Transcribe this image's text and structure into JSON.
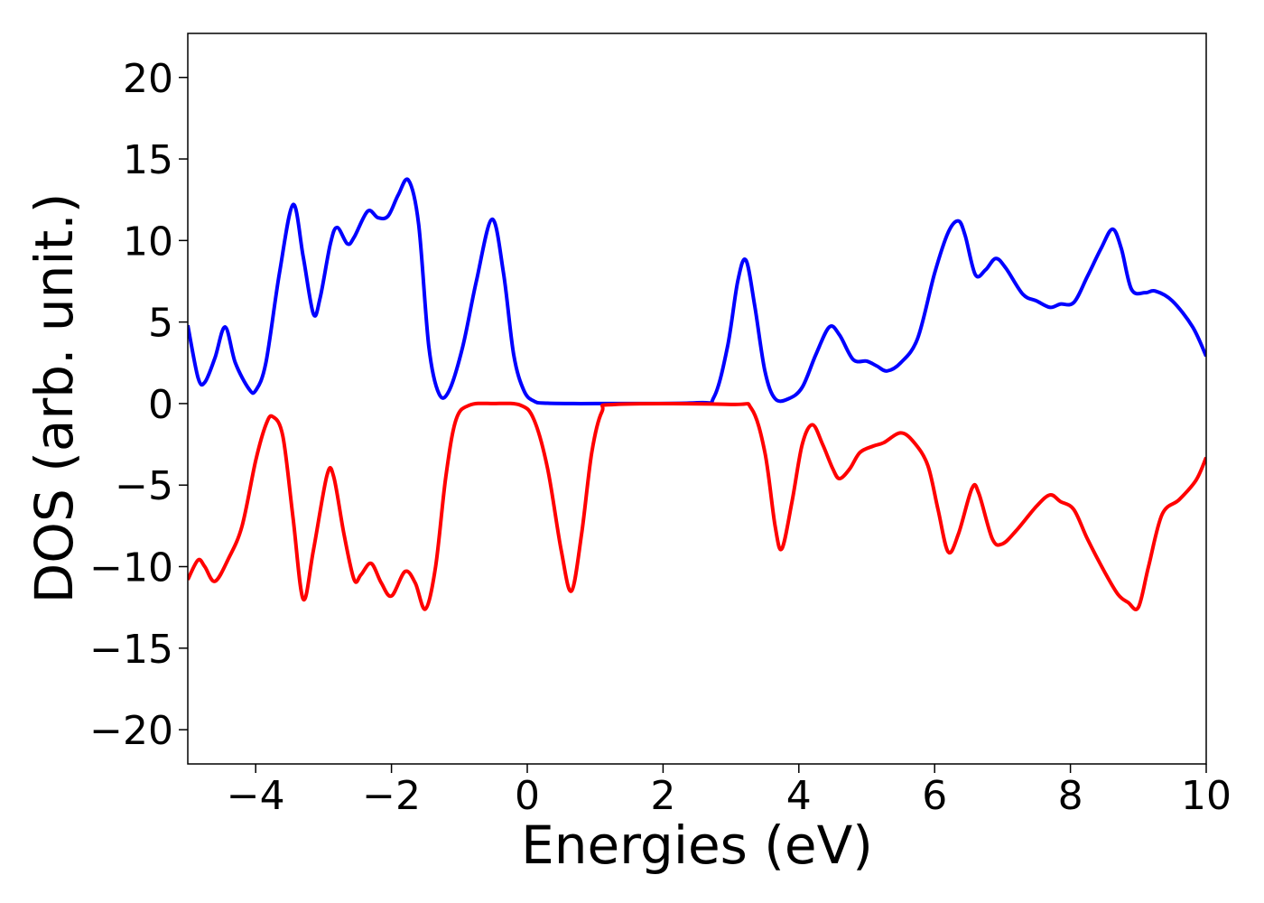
{
  "chart_data": {
    "type": "line",
    "xlabel": "Energies (eV)",
    "ylabel": "DOS (arb. unit.)",
    "xlim": [
      -5,
      10
    ],
    "ylim": [
      -22.1,
      22.7
    ],
    "xticks": [
      {
        "value": -4,
        "label": "−4"
      },
      {
        "value": -2,
        "label": "−2"
      },
      0,
      2,
      4,
      6,
      8,
      10
    ],
    "yticks": [
      {
        "value": -20,
        "label": "−20"
      },
      {
        "value": -15,
        "label": "−15"
      },
      {
        "value": -10,
        "label": "−10"
      },
      {
        "value": -5,
        "label": "−5"
      },
      0,
      5,
      10,
      15,
      20
    ],
    "series": [
      {
        "color": "#0000ff",
        "x": [
          -5,
          -4.85,
          -4.75,
          -4.6,
          -4.45,
          -4.3,
          -4.1,
          -4.0,
          -3.85,
          -3.65,
          -3.45,
          -3.3,
          -3.15,
          -3.05,
          -2.9,
          -2.8,
          -2.65,
          -2.55,
          -2.35,
          -2.2,
          -2.05,
          -1.9,
          -1.75,
          -1.6,
          -1.45,
          -1.3,
          -1.15,
          -0.95,
          -0.75,
          -0.52,
          -0.35,
          -0.2,
          -0.05,
          0.1,
          0.3,
          1,
          2.5,
          2.75,
          2.95,
          3.1,
          3.22,
          3.35,
          3.5,
          3.65,
          3.85,
          4.05,
          4.25,
          4.45,
          4.6,
          4.8,
          5.0,
          5.15,
          5.3,
          5.5,
          5.75,
          6.0,
          6.2,
          6.35,
          6.45,
          6.6,
          6.75,
          6.9,
          7.05,
          7.3,
          7.5,
          7.7,
          7.85,
          8.05,
          8.25,
          8.45,
          8.62,
          8.75,
          8.9,
          9.1,
          9.25,
          9.5,
          9.8,
          10
        ],
        "values": [
          4.8,
          1.6,
          1.3,
          2.8,
          4.7,
          2.5,
          0.9,
          0.8,
          2.5,
          8,
          12.2,
          9,
          5.5,
          6.5,
          9.8,
          10.8,
          9.8,
          10.2,
          11.8,
          11.4,
          11.5,
          12.8,
          13.7,
          11,
          3.5,
          0.6,
          0.8,
          3.5,
          7.5,
          11.3,
          8,
          3,
          0.8,
          0.15,
          0.02,
          0,
          0.05,
          0.4,
          3.5,
          7.5,
          8.8,
          6,
          2,
          0.3,
          0.3,
          1,
          3,
          4.7,
          4.2,
          2.7,
          2.6,
          2.3,
          2,
          2.5,
          4,
          8,
          10.5,
          11.2,
          10.3,
          7.9,
          8.2,
          8.9,
          8.3,
          6.7,
          6.3,
          5.9,
          6.1,
          6.2,
          7.8,
          9.5,
          10.7,
          9.5,
          7,
          6.8,
          6.9,
          6.3,
          4.7,
          2.9
        ]
      },
      {
        "color": "#ff0000",
        "x": [
          -5,
          -4.85,
          -4.75,
          -4.6,
          -4.4,
          -4.2,
          -4.0,
          -3.85,
          -3.75,
          -3.6,
          -3.45,
          -3.3,
          -3.15,
          -2.95,
          -2.85,
          -2.7,
          -2.55,
          -2.45,
          -2.3,
          -2.15,
          -2.0,
          -1.8,
          -1.65,
          -1.5,
          -1.35,
          -1.2,
          -1.05,
          -0.85,
          -0.5,
          -0.1,
          0.1,
          0.3,
          0.5,
          0.65,
          0.8,
          0.95,
          1.1,
          1.3,
          3.0,
          3.3,
          3.5,
          3.65,
          3.75,
          3.9,
          4.05,
          4.2,
          4.35,
          4.5,
          4.6,
          4.75,
          4.9,
          5.1,
          5.25,
          5.5,
          5.7,
          5.9,
          6.05,
          6.2,
          6.35,
          6.55,
          6.65,
          6.85,
          7.0,
          7.2,
          7.5,
          7.7,
          7.85,
          8.05,
          8.25,
          8.5,
          8.7,
          8.85,
          9.0,
          9.15,
          9.35,
          9.6,
          9.85,
          10
        ],
        "values": [
          -10.8,
          -9.6,
          -10,
          -10.9,
          -9.5,
          -7.5,
          -3.5,
          -1.3,
          -0.8,
          -2,
          -7,
          -12,
          -9,
          -4.4,
          -4.5,
          -8,
          -10.8,
          -10.5,
          -9.8,
          -11,
          -11.8,
          -10.3,
          -11,
          -12.6,
          -10,
          -4.5,
          -1,
          -0.1,
          0,
          -0.1,
          -1,
          -4,
          -9,
          -11.5,
          -8,
          -3,
          -0.5,
          -0.05,
          -0.05,
          -0.3,
          -3,
          -7.5,
          -8.9,
          -6,
          -2.5,
          -1.3,
          -2.5,
          -4,
          -4.6,
          -4,
          -3,
          -2.6,
          -2.4,
          -1.8,
          -2.4,
          -3.8,
          -6.5,
          -9.1,
          -8,
          -5.2,
          -5.5,
          -8.3,
          -8.6,
          -7.8,
          -6.3,
          -5.6,
          -6,
          -6.5,
          -8.3,
          -10.3,
          -11.7,
          -12.2,
          -12.5,
          -10,
          -6.8,
          -5.9,
          -4.7,
          -3.3
        ]
      }
    ]
  }
}
